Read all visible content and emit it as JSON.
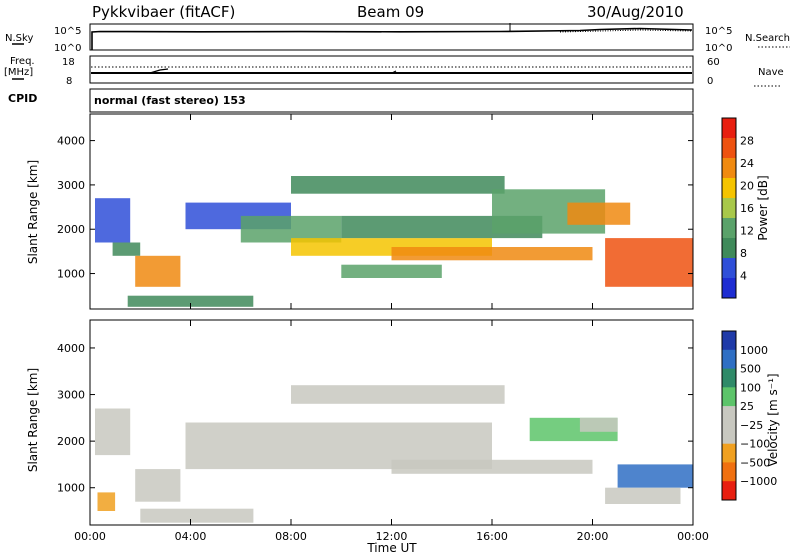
{
  "header": {
    "station": "Pykkvibaer (fitACF)",
    "beam": "Beam 09",
    "date": "30/Aug/2010"
  },
  "top_panels": {
    "nsky_label": "N.Sky",
    "nsky_ticks": [
      "10^5",
      "10^0"
    ],
    "nsearch_label": "N.Search",
    "nsearch_ticks": [
      "10^5",
      "10^0"
    ],
    "freq_label": "Freq.",
    "freq_unit": "[MHz]",
    "freq_ticks": [
      "18",
      "8"
    ],
    "nave_label": "Nave",
    "nave_ticks": [
      "60",
      "0"
    ],
    "cpid_label": "CPID",
    "cpid_value": "normal (fast stereo) 153"
  },
  "x_axis": {
    "label": "Time UT",
    "ticks": [
      "00:00",
      "04:00",
      "08:00",
      "12:00",
      "16:00",
      "20:00",
      "00:00"
    ]
  },
  "colors": {
    "power_scale": [
      "#1e2dd2",
      "#2f4fd8",
      "#3f8a5a",
      "#5aa26a",
      "#a8c84a",
      "#f5c400",
      "#f08a10",
      "#ee5210",
      "#e81f10"
    ],
    "velocity_scale": [
      "#1f3aa8",
      "#2f6fc4",
      "#2f8a68",
      "#5dc46a",
      "#c8c8c0",
      "#c8c8c0",
      "#f0a020",
      "#f07010",
      "#e81f10"
    ]
  },
  "chart_data": [
    {
      "type": "heatmap",
      "name": "power",
      "ylabel": "Slant Range [km]",
      "yticks": [
        "4000",
        "3000",
        "2000",
        "1000"
      ],
      "ylim": [
        200,
        4600
      ],
      "xlim": [
        0,
        24
      ],
      "colorbar": {
        "label": "Power [dB]",
        "ticks": [
          "28",
          "24",
          "20",
          "16",
          "12",
          "8",
          "4"
        ],
        "range": [
          0,
          32
        ]
      },
      "regions": [
        {
          "t0": 0.2,
          "t1": 1.6,
          "r0": 1700,
          "r1": 2700,
          "value": 6
        },
        {
          "t0": 0.9,
          "t1": 2.0,
          "r0": 1400,
          "r1": 1700,
          "value": 10
        },
        {
          "t0": 1.8,
          "t1": 3.6,
          "r0": 700,
          "r1": 1400,
          "value": 22
        },
        {
          "t0": 3.8,
          "t1": 8.0,
          "r0": 2000,
          "r1": 2600,
          "value": 6
        },
        {
          "t0": 6.0,
          "t1": 10.0,
          "r0": 1700,
          "r1": 2300,
          "value": 12
        },
        {
          "t0": 8.0,
          "t1": 16.0,
          "r0": 1400,
          "r1": 1800,
          "value": 18
        },
        {
          "t0": 10.0,
          "t1": 18.0,
          "r0": 1800,
          "r1": 2300,
          "value": 8
        },
        {
          "t0": 12.0,
          "t1": 20.0,
          "r0": 1300,
          "r1": 1600,
          "value": 22
        },
        {
          "t0": 8.0,
          "t1": 16.5,
          "r0": 2800,
          "r1": 3200,
          "value": 8
        },
        {
          "t0": 16.0,
          "t1": 20.5,
          "r0": 1900,
          "r1": 2900,
          "value": 12
        },
        {
          "t0": 19.0,
          "t1": 21.5,
          "r0": 2100,
          "r1": 2600,
          "value": 24
        },
        {
          "t0": 20.5,
          "t1": 24.0,
          "r0": 700,
          "r1": 1800,
          "value": 28
        },
        {
          "t0": 1.5,
          "t1": 6.5,
          "r0": 250,
          "r1": 500,
          "value": 8
        },
        {
          "t0": 10.0,
          "t1": 14.0,
          "r0": 900,
          "r1": 1200,
          "value": 12
        }
      ]
    },
    {
      "type": "heatmap",
      "name": "velocity",
      "ylabel": "Slant Range [km]",
      "yticks": [
        "4000",
        "3000",
        "2000",
        "1000"
      ],
      "ylim": [
        200,
        4600
      ],
      "xlim": [
        0,
        24
      ],
      "colorbar": {
        "label": "Velocity [m s⁻¹]",
        "ticks": [
          "1000",
          "500",
          "100",
          "25",
          "−25",
          "−100",
          "−500",
          "−1000"
        ],
        "range": [
          -1000,
          1000
        ]
      },
      "regions": [
        {
          "t0": 0.2,
          "t1": 1.6,
          "r0": 1700,
          "r1": 2700,
          "value": 0
        },
        {
          "t0": 1.8,
          "t1": 3.6,
          "r0": 700,
          "r1": 1400,
          "value": 0
        },
        {
          "t0": 3.8,
          "t1": 16.0,
          "r0": 1400,
          "r1": 2400,
          "value": 0
        },
        {
          "t0": 12.0,
          "t1": 20.0,
          "r0": 1300,
          "r1": 1600,
          "value": 0
        },
        {
          "t0": 8.0,
          "t1": 16.5,
          "r0": 2800,
          "r1": 3200,
          "value": 0
        },
        {
          "t0": 17.5,
          "t1": 21.0,
          "r0": 2000,
          "r1": 2500,
          "value": 200
        },
        {
          "t0": 19.5,
          "t1": 21.0,
          "r0": 2200,
          "r1": 2500,
          "value": -200
        },
        {
          "t0": 21.0,
          "t1": 24.0,
          "r0": 1000,
          "r1": 1500,
          "value": 600
        },
        {
          "t0": 20.5,
          "t1": 23.5,
          "r0": 650,
          "r1": 1000,
          "value": -300
        },
        {
          "t0": 0.3,
          "t1": 1.0,
          "r0": 500,
          "r1": 900,
          "value": -400
        },
        {
          "t0": 2.0,
          "t1": 6.5,
          "r0": 250,
          "r1": 550,
          "value": -150
        }
      ]
    }
  ]
}
